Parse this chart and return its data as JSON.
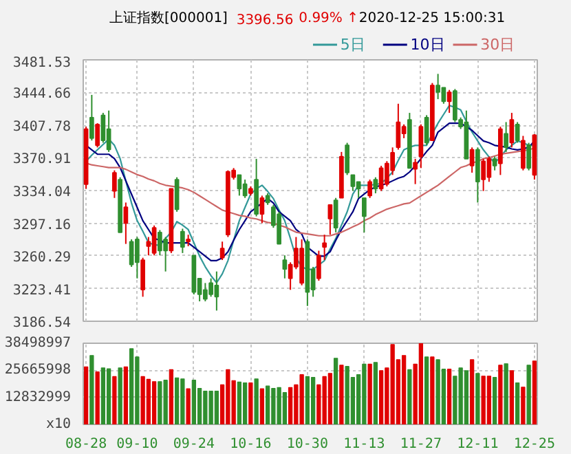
{
  "chart_data": [
    {
      "type": "candlestick",
      "title": "上证指数[000001]",
      "annotations": [
        "3396.56",
        "0.99% ↑",
        "2020-12-25 15:00:31"
      ],
      "ohlc": [
        [
          3341,
          3406,
          3336,
          3403.5
        ],
        [
          3416.5,
          3442,
          3390.5,
          3393
        ],
        [
          3385,
          3410,
          3382.7,
          3408.7
        ],
        [
          3419,
          3421.7,
          3388,
          3390.5
        ],
        [
          3403.5,
          3424.3,
          3377.6,
          3380.2
        ],
        [
          3333.5,
          3356.8,
          3325.7,
          3354.2
        ],
        [
          3346.4,
          3349,
          3286.8,
          3286.8
        ],
        [
          3297.2,
          3320.5,
          3273.8,
          3315.3
        ],
        [
          3276.4,
          3279,
          3247.9,
          3250.5
        ],
        [
          3279,
          3281.6,
          3234.9,
          3253
        ],
        [
          3222,
          3258.2,
          3214.2,
          3255.6
        ],
        [
          3271.2,
          3281.6,
          3260.9,
          3276.4
        ],
        [
          3263.5,
          3294.6,
          3260.9,
          3292
        ],
        [
          3286.8,
          3289.4,
          3260.9,
          3266.1
        ],
        [
          3279,
          3281.6,
          3242.7,
          3266.1
        ],
        [
          3266.1,
          3336.1,
          3263.5,
          3336.1
        ],
        [
          3346.4,
          3349,
          3310.1,
          3312.7
        ],
        [
          3287.8,
          3291,
          3263.5,
          3270.2
        ],
        [
          3276.4,
          3284.2,
          3271.2,
          3279
        ],
        [
          3260.9,
          3260.9,
          3216.8,
          3219.4
        ],
        [
          3234.9,
          3234.9,
          3209,
          3216.8
        ],
        [
          3222,
          3229.7,
          3209,
          3211.6
        ],
        [
          3229.7,
          3234.9,
          3214.2,
          3216.8
        ],
        [
          3227.1,
          3242.7,
          3198.6,
          3214.2
        ],
        [
          3258.2,
          3276.4,
          3255.6,
          3268.7
        ],
        [
          3284.2,
          3356.8,
          3281.6,
          3355.3
        ],
        [
          3349,
          3359.4,
          3346.4,
          3356.8
        ],
        [
          3351.6,
          3351.6,
          3328.3,
          3336.1
        ],
        [
          3341.3,
          3346.4,
          3325.7,
          3328.3
        ],
        [
          3330.9,
          3338.7,
          3328.3,
          3336.1
        ],
        [
          3346.4,
          3369.8,
          3304.9,
          3307.5
        ],
        [
          3307.5,
          3328.3,
          3297.2,
          3325.7
        ],
        [
          3328.3,
          3330.9,
          3317.9,
          3320.5
        ],
        [
          3315.3,
          3317.9,
          3292,
          3294.6
        ],
        [
          3307.5,
          3310.1,
          3273.8,
          3273.8
        ],
        [
          3255.6,
          3260.9,
          3234.9,
          3245.3
        ],
        [
          3234.9,
          3253,
          3222,
          3250.5
        ],
        [
          3247.9,
          3281.6,
          3245.3,
          3268.7
        ],
        [
          3229.7,
          3279,
          3227.1,
          3268.7
        ],
        [
          3276.4,
          3279,
          3203.8,
          3219.4
        ],
        [
          3245.3,
          3247.9,
          3214.2,
          3222
        ],
        [
          3234.9,
          3266.1,
          3232.3,
          3260.9
        ],
        [
          3270.2,
          3284.2,
          3255.6,
          3274.9
        ],
        [
          3302.3,
          3317.9,
          3284.2,
          3317.9
        ],
        [
          3323.1,
          3325.7,
          3286.8,
          3292
        ],
        [
          3325.7,
          3377.6,
          3325.7,
          3372.4
        ],
        [
          3385.3,
          3387.9,
          3351.6,
          3354.2
        ],
        [
          3351.6,
          3351.6,
          3333.5,
          3338.7
        ],
        [
          3343.9,
          3343.9,
          3325.7,
          3336.1
        ],
        [
          3325.7,
          3325.7,
          3286.8,
          3304.9
        ],
        [
          3328.3,
          3346.4,
          3325.7,
          3343.9
        ],
        [
          3346.4,
          3349,
          3330.9,
          3336.1
        ],
        [
          3336.1,
          3362,
          3333.5,
          3359.4
        ],
        [
          3341.3,
          3367.2,
          3338.7,
          3364.6
        ],
        [
          3356.8,
          3382.7,
          3351.6,
          3376.8
        ],
        [
          3382.7,
          3432,
          3380.2,
          3411.3
        ],
        [
          3398.3,
          3408.7,
          3393.1,
          3406.1
        ],
        [
          3413.9,
          3421.7,
          3359.4,
          3359.4
        ],
        [
          3358.4,
          3369.8,
          3341.3,
          3365.6
        ],
        [
          3372.4,
          3408.7,
          3359.4,
          3406.1
        ],
        [
          3416.5,
          3419.1,
          3385.3,
          3388
        ],
        [
          3390.5,
          3455.4,
          3390.5,
          3452.8
        ],
        [
          3452.8,
          3465.7,
          3437.2,
          3445
        ],
        [
          3450.2,
          3450.2,
          3432,
          3434.6
        ],
        [
          3434.6,
          3447.6,
          3421.7,
          3445
        ],
        [
          3446.6,
          3448.6,
          3411.3,
          3413.9
        ],
        [
          3413.9,
          3416.5,
          3403.5,
          3406.1
        ],
        [
          3411.3,
          3424.3,
          3369.8,
          3369.8
        ],
        [
          3362,
          3382.7,
          3354.2,
          3380.2
        ],
        [
          3380.2,
          3382.7,
          3320.5,
          3343.9
        ],
        [
          3346.4,
          3369.8,
          3333.5,
          3367.2
        ],
        [
          3349,
          3372.4,
          3343.9,
          3369.8
        ],
        [
          3369.8,
          3372.4,
          3356.8,
          3362
        ],
        [
          3364.6,
          3406.1,
          3351.6,
          3403.5
        ],
        [
          3398.3,
          3411.3,
          3377.6,
          3382.7
        ],
        [
          3388,
          3421.7,
          3382.7,
          3413.9
        ],
        [
          3408.7,
          3411.3,
          3388,
          3390.5
        ],
        [
          3359.4,
          3395.7,
          3356.8,
          3390.5
        ],
        [
          3385.3,
          3387.9,
          3356.8,
          3359.4
        ],
        [
          3351.6,
          3397.7,
          3346.4,
          3396.6
        ]
      ],
      "colors": [
        "#e00000",
        "#2f8f2f",
        "#e00000",
        "#2f8f2f",
        "#2f8f2f",
        "#e00000",
        "#2f8f2f",
        "#e00000",
        "#2f8f2f",
        "#2f8f2f",
        "#e00000",
        "#e00000",
        "#e00000",
        "#2f8f2f",
        "#2f8f2f",
        "#e00000",
        "#2f8f2f",
        "#2f8f2f",
        "#e00000",
        "#2f8f2f",
        "#2f8f2f",
        "#2f8f2f",
        "#2f8f2f",
        "#2f8f2f",
        "#e00000",
        "#e00000",
        "#e00000",
        "#2f8f2f",
        "#2f8f2f",
        "#e00000",
        "#2f8f2f",
        "#e00000",
        "#2f8f2f",
        "#2f8f2f",
        "#2f8f2f",
        "#2f8f2f",
        "#e00000",
        "#e00000",
        "#e00000",
        "#2f8f2f",
        "#2f8f2f",
        "#e00000",
        "#e00000",
        "#e00000",
        "#2f8f2f",
        "#e00000",
        "#2f8f2f",
        "#2f8f2f",
        "#2f8f2f",
        "#2f8f2f",
        "#e00000",
        "#2f8f2f",
        "#e00000",
        "#e00000",
        "#e00000",
        "#e00000",
        "#e00000",
        "#2f8f2f",
        "#e00000",
        "#e00000",
        "#2f8f2f",
        "#e00000",
        "#2f8f2f",
        "#2f8f2f",
        "#e00000",
        "#2f8f2f",
        "#2f8f2f",
        "#2f8f2f",
        "#e00000",
        "#2f8f2f",
        "#e00000",
        "#e00000",
        "#2f8f2f",
        "#e00000",
        "#2f8f2f",
        "#e00000",
        "#2f8f2f",
        "#e00000",
        "#2f8f2f",
        "#e00000"
      ],
      "series": [
        {
          "name": "5日",
          "type": "line",
          "color": "#339999",
          "values": [
            3367,
            3374,
            3380,
            3386,
            3392,
            3385,
            3370,
            3345,
            3320,
            3300,
            3288,
            3275,
            3273,
            3272,
            3280,
            3287,
            3299,
            3295,
            3290,
            3275,
            3260,
            3248,
            3238,
            3230,
            3240,
            3255,
            3278,
            3300,
            3315,
            3330,
            3336,
            3340,
            3333,
            3325,
            3312,
            3300,
            3280,
            3258,
            3248,
            3245,
            3245,
            3250,
            3255,
            3268,
            3280,
            3295,
            3310,
            3330,
            3340,
            3340,
            3340,
            3341,
            3342,
            3348,
            3355,
            3368,
            3380,
            3383,
            3385,
            3385,
            3385,
            3398,
            3410,
            3420,
            3430,
            3428,
            3425,
            3412,
            3400,
            3390,
            3380,
            3372,
            3365,
            3372,
            3380,
            3385,
            3390,
            3388,
            3385,
            3385
          ]
        },
        {
          "name": "10日",
          "type": "line",
          "color": "#000080",
          "values": [
            3385,
            3380,
            3375,
            3375,
            3375,
            3370,
            3360,
            3345,
            3330,
            3315,
            3300,
            3290,
            3280,
            3278,
            3275,
            3275,
            3275,
            3275,
            3275,
            3270,
            3265,
            3260,
            3255,
            3255,
            3258,
            3265,
            3278,
            3290,
            3300,
            3310,
            3315,
            3320,
            3325,
            3320,
            3310,
            3305,
            3300,
            3290,
            3285,
            3270,
            3265,
            3260,
            3260,
            3265,
            3278,
            3290,
            3300,
            3310,
            3325,
            3330,
            3335,
            3338,
            3340,
            3342,
            3345,
            3348,
            3350,
            3355,
            3362,
            3370,
            3378,
            3385,
            3400,
            3405,
            3410,
            3410,
            3410,
            3406,
            3402,
            3396,
            3390,
            3388,
            3385,
            3384,
            3383,
            3381,
            3380,
            3381,
            3383,
            3390
          ]
        },
        {
          "name": "30日",
          "type": "line",
          "color": "#cc6666",
          "values": [
            3365,
            3363,
            3362,
            3361,
            3360,
            3360,
            3360,
            3358,
            3355,
            3352,
            3350,
            3347,
            3345,
            3342,
            3340,
            3339,
            3338,
            3337,
            3335,
            3332,
            3328,
            3324,
            3320,
            3316,
            3312,
            3310,
            3308,
            3306,
            3305,
            3303,
            3302,
            3300,
            3298,
            3297,
            3295,
            3293,
            3290,
            3287,
            3286,
            3285,
            3284,
            3283,
            3283,
            3283,
            3285,
            3287,
            3290,
            3293,
            3296,
            3300,
            3303,
            3307,
            3310,
            3313,
            3315,
            3317,
            3319,
            3320,
            3324,
            3328,
            3332,
            3336,
            3340,
            3345,
            3350,
            3355,
            3360,
            3362,
            3365,
            3367,
            3370,
            3371,
            3373,
            3375,
            3376,
            3377,
            3378,
            3379,
            3380,
            3382
          ]
        }
      ],
      "ylim": [
        3186.54,
        3481.53
      ],
      "yticks": [
        3186.54,
        3223.41,
        3260.29,
        3297.16,
        3334.04,
        3370.91,
        3407.78,
        3444.66,
        3481.53
      ],
      "grid": true,
      "legend": "top right",
      "tick_labels": "y"
    },
    {
      "type": "bar",
      "categories": [
        "08-28",
        null,
        null,
        null,
        null,
        null,
        null,
        null,
        null,
        "09-10",
        null,
        null,
        null,
        null,
        null,
        null,
        null,
        null,
        null,
        "09-24",
        null,
        null,
        null,
        null,
        null,
        null,
        null,
        null,
        null,
        "10-16",
        null,
        null,
        null,
        null,
        null,
        null,
        null,
        null,
        null,
        "10-30",
        null,
        null,
        null,
        null,
        null,
        null,
        null,
        null,
        null,
        "11-13",
        null,
        null,
        null,
        null,
        null,
        null,
        null,
        null,
        null,
        "11-27",
        null,
        null,
        null,
        null,
        null,
        null,
        null,
        null,
        null,
        "12-11",
        null,
        null,
        null,
        null,
        null,
        null,
        null,
        null,
        null,
        "12-25"
      ],
      "values": [
        27300000,
        32700000,
        24900000,
        26800000,
        26400000,
        22700000,
        26800000,
        27300000,
        35900000,
        32000000,
        22700000,
        21400000,
        20300000,
        20300000,
        21000000,
        26000000,
        22100000,
        21600000,
        16900000,
        21000000,
        17100000,
        15800000,
        15800000,
        15800000,
        18800000,
        26000000,
        20800000,
        20100000,
        19700000,
        19700000,
        21600000,
        16900000,
        18200000,
        17100000,
        17500000,
        15100000,
        17500000,
        18800000,
        23600000,
        22700000,
        22300000,
        18800000,
        22700000,
        24200000,
        31400000,
        28100000,
        27500000,
        22300000,
        23600000,
        28600000,
        28600000,
        29400000,
        25500000,
        26800000,
        37900000,
        30700000,
        32700000,
        26000000,
        28600000,
        38400000,
        32000000,
        32000000,
        30700000,
        26200000,
        26200000,
        22900000,
        26800000,
        25500000,
        30700000,
        24200000,
        22900000,
        22900000,
        22300000,
        28100000,
        28800000,
        25500000,
        19700000,
        17700000,
        28100000,
        30100000
      ],
      "colors": [
        "#e00000",
        "#2f8f2f",
        "#e00000",
        "#2f8f2f",
        "#2f8f2f",
        "#e00000",
        "#2f8f2f",
        "#e00000",
        "#2f8f2f",
        "#2f8f2f",
        "#e00000",
        "#e00000",
        "#e00000",
        "#2f8f2f",
        "#2f8f2f",
        "#e00000",
        "#2f8f2f",
        "#2f8f2f",
        "#e00000",
        "#2f8f2f",
        "#2f8f2f",
        "#2f8f2f",
        "#2f8f2f",
        "#2f8f2f",
        "#e00000",
        "#e00000",
        "#e00000",
        "#2f8f2f",
        "#2f8f2f",
        "#e00000",
        "#2f8f2f",
        "#e00000",
        "#2f8f2f",
        "#2f8f2f",
        "#2f8f2f",
        "#2f8f2f",
        "#e00000",
        "#e00000",
        "#e00000",
        "#2f8f2f",
        "#2f8f2f",
        "#e00000",
        "#e00000",
        "#e00000",
        "#2f8f2f",
        "#e00000",
        "#2f8f2f",
        "#2f8f2f",
        "#2f8f2f",
        "#2f8f2f",
        "#e00000",
        "#2f8f2f",
        "#e00000",
        "#e00000",
        "#e00000",
        "#e00000",
        "#e00000",
        "#2f8f2f",
        "#e00000",
        "#e00000",
        "#2f8f2f",
        "#e00000",
        "#2f8f2f",
        "#2f8f2f",
        "#e00000",
        "#2f8f2f",
        "#2f8f2f",
        "#2f8f2f",
        "#e00000",
        "#2f8f2f",
        "#e00000",
        "#e00000",
        "#2f8f2f",
        "#e00000",
        "#2f8f2f",
        "#e00000",
        "#2f8f2f",
        "#e00000",
        "#2f8f2f",
        "#e00000"
      ],
      "ylim": [
        0,
        38498997
      ],
      "yticks": [
        {
          "value": 0,
          "label": "x10"
        },
        12832999,
        25665998,
        38498997
      ],
      "grid": true
    }
  ]
}
